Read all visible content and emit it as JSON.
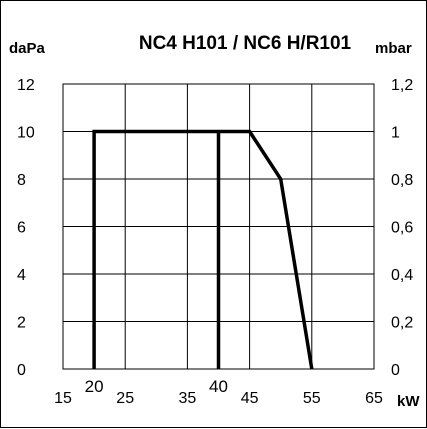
{
  "chart_data": {
    "type": "line",
    "title": "NC4  H101 / NC6 H/R101",
    "ylabel_left": "daPa",
    "ylabel_right": "mbar",
    "xlabel": "kW",
    "xlim": [
      15,
      65
    ],
    "ylim": [
      0,
      12
    ],
    "y2lim": [
      0,
      1.2
    ],
    "grid": true,
    "x_ticks": [
      "15",
      "20",
      "25",
      "35",
      "40",
      "45",
      "55",
      "65"
    ],
    "x_tick_values": [
      15,
      20,
      25,
      35,
      40,
      45,
      55,
      65
    ],
    "x_tick_raised": [
      false,
      true,
      false,
      false,
      true,
      false,
      false,
      false
    ],
    "y_ticks_left": [
      "0",
      "2",
      "4",
      "6",
      "8",
      "10",
      "12"
    ],
    "y_ticks_right": [
      "0",
      "0,2",
      "0,4",
      "0,6",
      "0,8",
      "1",
      "1,2"
    ],
    "y_tick_values": [
      0,
      2,
      4,
      6,
      8,
      10,
      12
    ],
    "series": [
      {
        "color": "#000000",
        "points": [
          {
            "x": 20,
            "y": 0
          },
          {
            "x": 20,
            "y": 10
          },
          {
            "x": 45,
            "y": 10
          },
          {
            "x": 50,
            "y": 8
          },
          {
            "x": 55,
            "y": 0
          }
        ]
      },
      {
        "color": "#000000",
        "points": [
          {
            "x": 40,
            "y": 0
          },
          {
            "x": 40,
            "y": 10
          }
        ]
      }
    ]
  }
}
